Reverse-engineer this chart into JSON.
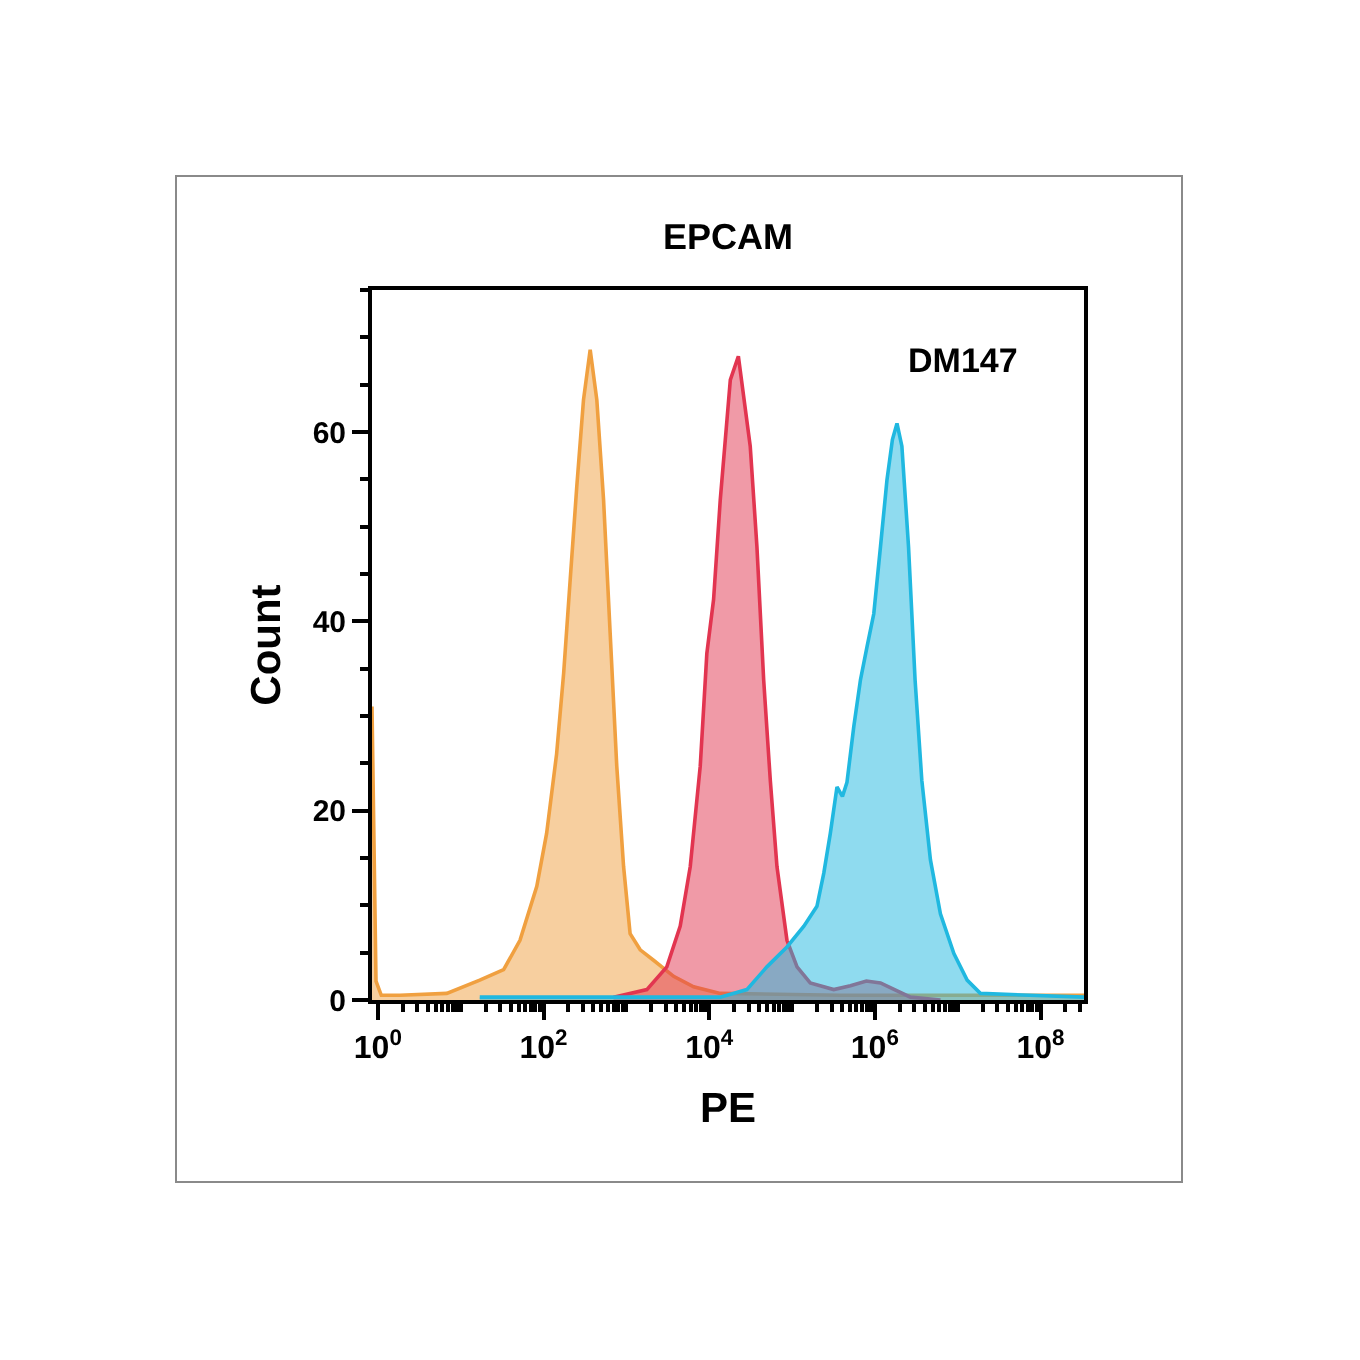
{
  "chart_data": {
    "type": "area",
    "title": "EPCAM",
    "xlabel": "PE",
    "ylabel": "Count",
    "log": "x",
    "annotations": [
      "DM147"
    ],
    "xlim": [
      0.85,
      335000000
    ],
    "ylim": [
      0,
      75
    ],
    "xticks": [
      {
        "value": 1,
        "label": "10$^{0}$"
      },
      {
        "value": 2,
        "label": null
      },
      {
        "value": 3,
        "label": null
      },
      {
        "value": 4,
        "label": null
      },
      {
        "value": 5,
        "label": null
      },
      {
        "value": 6,
        "label": null
      },
      {
        "value": 7,
        "label": null
      },
      {
        "value": 8,
        "label": null
      },
      {
        "value": 9,
        "label": null
      },
      {
        "value": 10,
        "label": null
      },
      {
        "value": 20,
        "label": null
      },
      {
        "value": 30,
        "label": null
      },
      {
        "value": 40,
        "label": null
      },
      {
        "value": 50,
        "label": null
      },
      {
        "value": 60,
        "label": null
      },
      {
        "value": 70,
        "label": null
      },
      {
        "value": 80,
        "label": null
      },
      {
        "value": 90,
        "label": null
      },
      {
        "value": 100,
        "label": "10$^{2}$"
      },
      {
        "value": 200,
        "label": null
      },
      {
        "value": 300,
        "label": null
      },
      {
        "value": 400,
        "label": null
      },
      {
        "value": 500,
        "label": null
      },
      {
        "value": 600,
        "label": null
      },
      {
        "value": 700,
        "label": null
      },
      {
        "value": 800,
        "label": null
      },
      {
        "value": 900,
        "label": null
      },
      {
        "value": 1000,
        "label": null
      },
      {
        "value": 2000,
        "label": null
      },
      {
        "value": 3000,
        "label": null
      },
      {
        "value": 4000,
        "label": null
      },
      {
        "value": 5000,
        "label": null
      },
      {
        "value": 6000,
        "label": null
      },
      {
        "value": 7000,
        "label": null
      },
      {
        "value": 8000,
        "label": null
      },
      {
        "value": 9000,
        "label": null
      },
      {
        "value": 10000,
        "label": "10$^{4}$"
      },
      {
        "value": 20000,
        "label": null
      },
      {
        "value": 30000,
        "label": null
      },
      {
        "value": 40000,
        "label": null
      },
      {
        "value": 50000,
        "label": null
      },
      {
        "value": 60000,
        "label": null
      },
      {
        "value": 70000,
        "label": null
      },
      {
        "value": 80000,
        "label": null
      },
      {
        "value": 90000,
        "label": null
      },
      {
        "value": 100000,
        "label": null
      },
      {
        "value": 200000,
        "label": null
      },
      {
        "value": 300000,
        "label": null
      },
      {
        "value": 400000,
        "label": null
      },
      {
        "value": 500000,
        "label": null
      },
      {
        "value": 600000,
        "label": null
      },
      {
        "value": 700000,
        "label": null
      },
      {
        "value": 800000,
        "label": null
      },
      {
        "value": 900000,
        "label": null
      },
      {
        "value": 1000000,
        "label": "10$^{6}$"
      },
      {
        "value": 2000000,
        "label": null
      },
      {
        "value": 3000000,
        "label": null
      },
      {
        "value": 4000000,
        "label": null
      },
      {
        "value": 5000000,
        "label": null
      },
      {
        "value": 6000000,
        "label": null
      },
      {
        "value": 7000000,
        "label": null
      },
      {
        "value": 8000000,
        "label": null
      },
      {
        "value": 9000000,
        "label": null
      },
      {
        "value": 10000000,
        "label": null
      },
      {
        "value": 20000000,
        "label": null
      },
      {
        "value": 30000000,
        "label": null
      },
      {
        "value": 40000000,
        "label": null
      },
      {
        "value": 50000000,
        "label": null
      },
      {
        "value": 60000000,
        "label": null
      },
      {
        "value": 70000000,
        "label": null
      },
      {
        "value": 80000000,
        "label": null
      },
      {
        "value": 90000000,
        "label": null
      },
      {
        "value": 100000000,
        "label": "10$^{8}$"
      },
      {
        "value": 200000000,
        "label": null
      },
      {
        "value": 300000000,
        "label": null
      }
    ],
    "yticks": [
      0,
      {
        "value": 5,
        "label": null
      },
      {
        "value": 10,
        "label": null
      },
      {
        "value": 15,
        "label": null
      },
      20,
      {
        "value": 25,
        "label": null
      },
      {
        "value": 30,
        "label": null
      },
      {
        "value": 35,
        "label": null
      },
      40,
      {
        "value": 45,
        "label": null
      },
      {
        "value": 50,
        "label": null
      },
      {
        "value": 55,
        "label": null
      },
      60,
      {
        "value": 65,
        "label": null
      },
      {
        "value": 70,
        "label": null
      },
      {
        "value": 75,
        "label": null
      }
    ],
    "series": [
      {
        "color": "#f0a040",
        "x": [
          0.85,
          0.95,
          1.1,
          1.85,
          6.8,
          17,
          33,
          52,
          83,
          109,
          144,
          175,
          210,
          252,
          304,
          366,
          440,
          531,
          638,
          766,
          926,
          1110,
          1470,
          2130,
          3720,
          6490,
          13600,
          384000,
          335000000
        ],
        "values": [
          31,
          2,
          0.5,
          0.5,
          0.7,
          2.1,
          3.2,
          6.3,
          12,
          17.6,
          26,
          34.5,
          44.4,
          54.2,
          63.4,
          68.7,
          63.4,
          52.8,
          38.7,
          24.7,
          14.1,
          7,
          5.3,
          4.2,
          2.5,
          1.4,
          0.7,
          0.5,
          0.5
        ]
      },
      {
        "color": "#e23550",
        "x": [
          700,
          1770,
          3080,
          4470,
          5910,
          7800,
          9370,
          11300,
          13600,
          18000,
          22500,
          31300,
          37700,
          45500,
          54700,
          65800,
          86900,
          115000,
          166000,
          319000,
          507000,
          791000,
          1170000,
          1630000,
          2690000,
          6200000
        ],
        "values": [
          0.3,
          1.1,
          3.5,
          7.8,
          14.1,
          24.7,
          36.6,
          42.3,
          52.8,
          65.5,
          68,
          58.5,
          47.9,
          33.8,
          23.2,
          14.1,
          6.3,
          3.5,
          1.8,
          1.1,
          1.5,
          2,
          1.8,
          1.2,
          0.3,
          0
        ]
      },
      {
        "color": "#20b8e0",
        "x": [
          17,
          13600,
          28500,
          49700,
          86900,
          139000,
          200000,
          242000,
          290000,
          349000,
          406000,
          461000,
          557000,
          670000,
          804000,
          971000,
          1170000,
          1400000,
          1630000,
          1850000,
          2120000,
          2550000,
          3060000,
          3690000,
          4690000,
          6190000,
          9000000,
          13000000,
          18800000,
          335000000
        ],
        "values": [
          0.3,
          0.3,
          1.1,
          3.5,
          5.6,
          7.8,
          9.9,
          13.4,
          17.6,
          22.5,
          21.5,
          23,
          28.9,
          33.8,
          37.3,
          40.8,
          47.9,
          54.9,
          59.2,
          60.9,
          58.5,
          47.9,
          33.8,
          23.2,
          14.8,
          9.1,
          4.9,
          2.1,
          0.7,
          0.3
        ]
      }
    ]
  }
}
